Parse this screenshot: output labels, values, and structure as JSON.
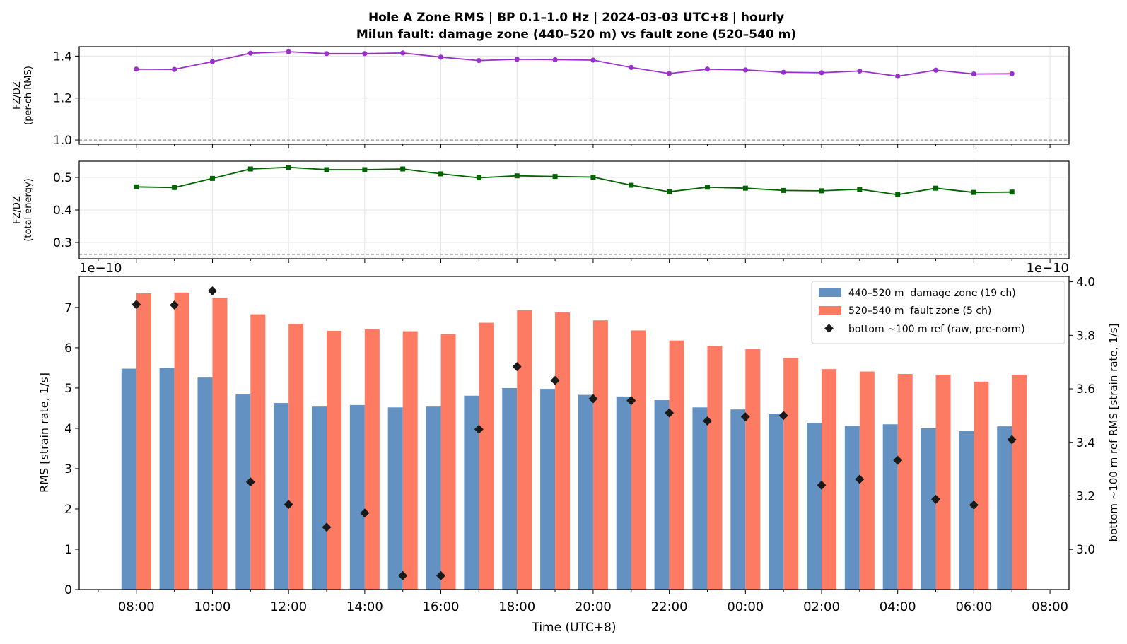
{
  "figure": {
    "title_line1": "Hole A Zone RMS  |  BP 0.1–1.0 Hz  |  2024-03-03 UTC+8  |  hourly",
    "title_line2": "Milun fault: damage zone (440–520 m) vs fault zone (520–540 m)"
  },
  "colors": {
    "damage_zone": "#6392c2",
    "fault_zone": "#fe7b63",
    "ratio_rms": "#9932cc",
    "ratio_energy": "#006400",
    "reference": "#1a1a1a"
  },
  "chart_data": [
    {
      "type": "line",
      "panel": "top",
      "ylabel_line1": "FZ/DZ",
      "ylabel_line2": "(per-ch RMS)",
      "ylim": [
        0.98,
        1.445
      ],
      "yticks": [
        1.0,
        1.2,
        1.4
      ],
      "ytick_labels": [
        "1.0",
        "1.2",
        "1.4"
      ],
      "reference_line": 1.0,
      "grid": true,
      "series": [
        {
          "marker": "circle",
          "values": [
            1.338,
            1.337,
            1.374,
            1.414,
            1.421,
            1.412,
            1.412,
            1.415,
            1.395,
            1.379,
            1.385,
            1.383,
            1.381,
            1.346,
            1.317,
            1.338,
            1.334,
            1.323,
            1.321,
            1.329,
            1.304,
            1.333,
            1.315,
            1.316
          ]
        }
      ]
    },
    {
      "type": "line",
      "panel": "middle",
      "ylabel_line1": "FZ/DZ",
      "ylabel_line2": "(total energy)",
      "ylim": [
        0.25,
        0.55
      ],
      "yticks": [
        0.3,
        0.4,
        0.5
      ],
      "ytick_labels": [
        "0.3",
        "0.4",
        "0.5"
      ],
      "reference_line": 0.263,
      "grid": true,
      "series": [
        {
          "marker": "square",
          "values": [
            0.471,
            0.469,
            0.497,
            0.526,
            0.531,
            0.524,
            0.524,
            0.526,
            0.511,
            0.499,
            0.505,
            0.503,
            0.501,
            0.476,
            0.456,
            0.47,
            0.467,
            0.46,
            0.459,
            0.464,
            0.447,
            0.467,
            0.454,
            0.455
          ]
        }
      ]
    },
    {
      "type": "bar",
      "panel": "bottom",
      "categories": [
        "08:00",
        "09:00",
        "10:00",
        "11:00",
        "12:00",
        "13:00",
        "14:00",
        "15:00",
        "16:00",
        "17:00",
        "18:00",
        "19:00",
        "20:00",
        "21:00",
        "22:00",
        "23:00",
        "00:00",
        "01:00",
        "02:00",
        "03:00",
        "04:00",
        "05:00",
        "06:00",
        "07:00"
      ],
      "xtick_labels": [
        "08:00",
        "10:00",
        "12:00",
        "14:00",
        "16:00",
        "18:00",
        "20:00",
        "22:00",
        "00:00",
        "02:00",
        "04:00",
        "06:00",
        "08:00"
      ],
      "xlabel": "Time (UTC+8)",
      "ylabel": "RMS  [strain rate, 1/s]",
      "ylabel_right": "bottom ~100 m ref RMS  [strain rate, 1/s]",
      "offset_left": "1e−10",
      "offset_right": "1e−10",
      "ylim": [
        0,
        7.77
      ],
      "yticks": [
        0,
        1,
        2,
        3,
        4,
        5,
        6,
        7
      ],
      "ylim_right": [
        2.85,
        4.02
      ],
      "yticks_right": [
        3.0,
        3.2,
        3.4,
        3.6,
        3.8,
        4.0
      ],
      "ytick_labels_right": [
        "3.0",
        "3.2",
        "3.4",
        "3.6",
        "3.8",
        "4.0"
      ],
      "legend_position": "top-right",
      "series": [
        {
          "name": "440–520 m  damage zone (19 ch)",
          "kind": "bar",
          "axis": "left",
          "values": [
            5.48,
            5.5,
            5.26,
            4.84,
            4.63,
            4.54,
            4.58,
            4.52,
            4.54,
            4.81,
            5.0,
            4.98,
            4.83,
            4.79,
            4.7,
            4.52,
            4.47,
            4.35,
            4.14,
            4.06,
            4.1,
            4.0,
            3.93,
            4.05
          ]
        },
        {
          "name": "520–540 m  fault zone (5 ch)",
          "kind": "bar",
          "axis": "left",
          "values": [
            7.35,
            7.37,
            7.24,
            6.83,
            6.59,
            6.42,
            6.46,
            6.41,
            6.34,
            6.62,
            6.93,
            6.88,
            6.68,
            6.43,
            6.18,
            6.05,
            5.97,
            5.75,
            5.47,
            5.41,
            5.35,
            5.33,
            5.16,
            5.33
          ]
        },
        {
          "name": "bottom ~100 m ref (raw, pre-norm)",
          "kind": "scatter",
          "axis": "right",
          "values": [
            3.915,
            3.913,
            3.966,
            3.252,
            3.168,
            3.083,
            3.136,
            2.902,
            2.902,
            3.449,
            3.683,
            3.631,
            3.563,
            3.556,
            3.51,
            3.48,
            3.495,
            3.5,
            3.24,
            3.262,
            3.333,
            3.187,
            3.166,
            3.41
          ]
        }
      ]
    }
  ]
}
